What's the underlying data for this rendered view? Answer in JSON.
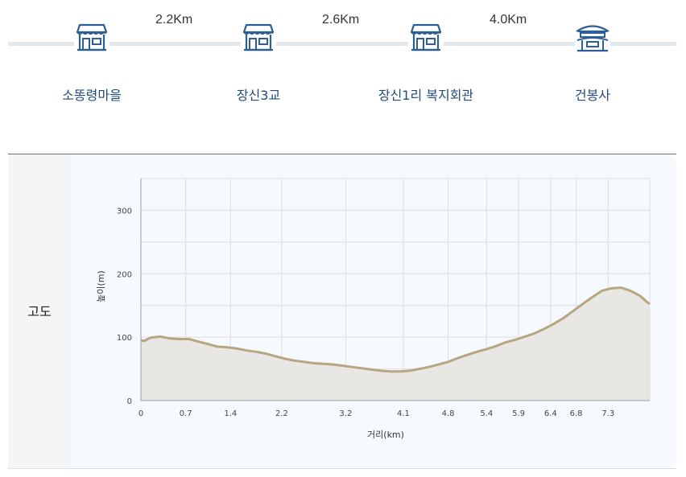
{
  "route": {
    "stops": [
      {
        "name": "소똥령마을",
        "icon": "shop-icon"
      },
      {
        "name": "장신3교",
        "icon": "shop-icon"
      },
      {
        "name": "장신1리 복지회관",
        "icon": "shop-icon"
      },
      {
        "name": "건봉사",
        "icon": "temple-icon"
      }
    ],
    "distances": [
      "2.2Km",
      "2.6Km",
      "4.0Km"
    ]
  },
  "panel": {
    "label": "고도"
  },
  "colors": {
    "line": "#b8a582",
    "fill": "#e9e7e3",
    "icon": "#2e5f93",
    "stop_text": "#1f4a7c"
  },
  "chart_data": {
    "type": "area",
    "xlabel": "거리(km)",
    "ylabel": "높이(m)",
    "xlim": [
      0,
      7.95
    ],
    "ylim": [
      0,
      350
    ],
    "x_ticks": [
      "0",
      "0.7",
      "1.4",
      "2.2",
      "3.2",
      "4.1",
      "4.8",
      "5.4",
      "5.9",
      "6.4",
      "6.8",
      "7.3"
    ],
    "y_ticks": [
      0,
      100,
      200,
      300
    ],
    "grid": true,
    "series": [
      {
        "x": [
          0,
          0.05,
          0.15,
          0.3,
          0.45,
          0.6,
          0.75,
          0.9,
          1.05,
          1.2,
          1.35,
          1.5,
          1.65,
          1.8,
          1.95,
          2.1,
          2.25,
          2.4,
          2.55,
          2.7,
          2.85,
          3.0,
          3.15,
          3.3,
          3.45,
          3.6,
          3.75,
          3.9,
          4.05,
          4.2,
          4.35,
          4.5,
          4.65,
          4.8,
          4.95,
          5.1,
          5.25,
          5.4,
          5.55,
          5.7,
          5.85,
          6.0,
          6.15,
          6.3,
          6.45,
          6.6,
          6.75,
          6.9,
          7.05,
          7.2,
          7.35,
          7.5,
          7.65,
          7.8,
          7.9,
          7.95
        ],
        "y": [
          95,
          94,
          99,
          101,
          98,
          97,
          97,
          93,
          89,
          85,
          84,
          82,
          79,
          77,
          74,
          70,
          66,
          63,
          61,
          59,
          58,
          57,
          55,
          53,
          51,
          49,
          47,
          46,
          46,
          47,
          50,
          53,
          57,
          61,
          67,
          72,
          77,
          81,
          86,
          92,
          96,
          101,
          106,
          113,
          121,
          130,
          141,
          152,
          163,
          173,
          177,
          178,
          173,
          165,
          156,
          152
        ]
      }
    ]
  }
}
